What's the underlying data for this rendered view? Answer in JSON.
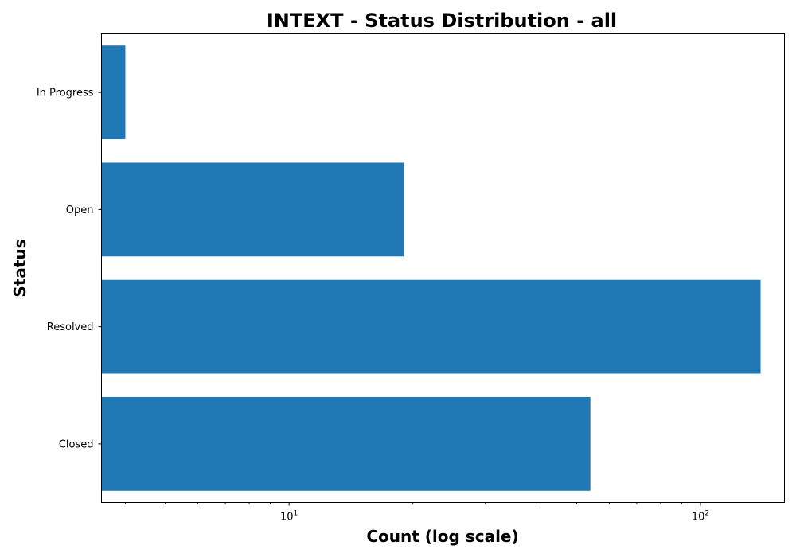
{
  "chart_data": {
    "type": "bar",
    "orientation": "horizontal",
    "title": "INTEXT - Status Distribution - all",
    "xlabel": "Count (log scale)",
    "ylabel": "Status",
    "x_scale": "log",
    "xlim": [
      3.5,
      160
    ],
    "x_ticks": [
      10,
      100
    ],
    "x_tick_labels": [
      {
        "base": "10",
        "exp": "1"
      },
      {
        "base": "10",
        "exp": "2"
      }
    ],
    "categories": [
      "In Progress",
      "Open",
      "Resolved",
      "Closed"
    ],
    "values": [
      4,
      19,
      140,
      54
    ],
    "bar_color": "#1f77b4",
    "grid": false,
    "legend": "none"
  }
}
